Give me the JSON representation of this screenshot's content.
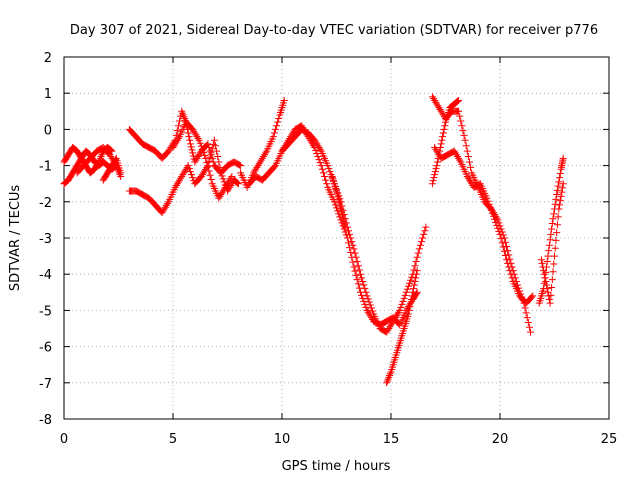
{
  "chart_data": {
    "type": "scatter",
    "title": "Day 307 of 2021, Sidereal Day-to-day VTEC variation (SDTVAR) for receiver p776",
    "xlabel": "GPS time / hours",
    "ylabel": "SDTVAR / TECUs",
    "xlim": [
      0,
      25
    ],
    "ylim": [
      -8,
      2
    ],
    "xticks": [
      0,
      5,
      10,
      15,
      20,
      25
    ],
    "yticks": [
      2,
      1,
      0,
      -1,
      -2,
      -3,
      -4,
      -5,
      -6,
      -7,
      -8
    ],
    "xtick_labels": [
      "0",
      "5",
      "10",
      "15",
      "20",
      "25"
    ],
    "ytick_labels": [
      "2",
      "1",
      "0",
      "-1",
      "-2",
      "-3",
      "-4",
      "-5",
      "-6",
      "-7",
      "-8"
    ],
    "grid": true,
    "marker": "plus",
    "color": "#ff0000",
    "series": [
      {
        "name": "s1",
        "x": [
          0.0,
          0.2,
          0.4,
          0.6,
          0.8,
          1.0,
          1.2,
          1.4,
          1.6,
          1.8,
          2.0,
          2.2,
          2.4
        ],
        "y": [
          -1.5,
          -1.4,
          -1.2,
          -1.0,
          -0.8,
          -0.6,
          -0.7,
          -0.9,
          -1.0,
          -0.9,
          -1.0,
          -1.1,
          -1.0
        ]
      },
      {
        "name": "s2",
        "x": [
          0.0,
          0.2,
          0.4,
          0.6,
          0.8,
          1.0,
          1.2,
          1.4,
          1.6,
          1.8,
          2.0,
          2.2
        ],
        "y": [
          -0.9,
          -0.7,
          -0.5,
          -0.6,
          -0.8,
          -1.0,
          -1.2,
          -1.1,
          -0.9,
          -0.6,
          -0.5,
          -0.6
        ]
      },
      {
        "name": "s3",
        "x": [
          0.6,
          0.9,
          1.2,
          1.5,
          1.8,
          2.1,
          2.4,
          2.6
        ],
        "y": [
          -1.2,
          -1.0,
          -0.8,
          -0.6,
          -0.5,
          -0.7,
          -1.0,
          -1.3
        ]
      },
      {
        "name": "s4",
        "x": [
          1.8,
          2.0,
          2.2,
          2.4,
          2.6
        ],
        "y": [
          -1.4,
          -1.2,
          -1.0,
          -0.8,
          -1.2
        ]
      },
      {
        "name": "s5",
        "x": [
          3.0,
          3.3,
          3.6,
          3.9,
          4.2,
          4.5,
          4.8,
          5.1,
          5.4,
          5.6,
          5.8,
          6.0,
          6.3,
          6.6,
          6.9,
          7.2,
          7.5,
          7.8,
          8.1
        ],
        "y": [
          0.0,
          -0.2,
          -0.4,
          -0.5,
          -0.6,
          -0.8,
          -0.6,
          -0.3,
          0.5,
          0.2,
          -0.4,
          -0.9,
          -0.6,
          -0.4,
          -1.0,
          -1.2,
          -1.0,
          -0.9,
          -1.0
        ]
      },
      {
        "name": "s6",
        "x": [
          3.0,
          3.3,
          3.6,
          3.9,
          4.2,
          4.5,
          4.8,
          5.1,
          5.4,
          5.7,
          6.0,
          6.3,
          6.6,
          6.9,
          7.2,
          7.5,
          7.8,
          8.0
        ],
        "y": [
          -1.7,
          -1.7,
          -1.8,
          -1.9,
          -2.1,
          -2.3,
          -2.0,
          -1.6,
          -1.3,
          -1.0,
          -1.5,
          -1.3,
          -1.0,
          -0.3,
          -1.2,
          -1.7,
          -1.4,
          -1.5
        ]
      },
      {
        "name": "s7",
        "x": [
          5.0,
          5.3,
          5.6,
          5.9,
          6.2,
          6.5,
          6.8,
          7.1,
          7.4,
          7.7
        ],
        "y": [
          -0.5,
          -0.2,
          0.2,
          0.0,
          -0.3,
          -0.8,
          -1.5,
          -1.9,
          -1.6,
          -1.3
        ]
      },
      {
        "name": "s8",
        "x": [
          8.1,
          8.4,
          8.7,
          9.0,
          9.3,
          9.6,
          9.9,
          10.1
        ],
        "y": [
          -1.2,
          -1.6,
          -1.2,
          -0.9,
          -0.6,
          -0.2,
          0.4,
          0.8
        ]
      },
      {
        "name": "s9",
        "x": [
          8.5,
          8.8,
          9.1,
          9.4,
          9.7,
          10.0,
          10.3,
          10.6,
          10.9,
          11.2,
          11.5,
          11.8,
          12.1,
          12.4,
          12.7,
          13.0,
          13.3,
          13.6,
          13.9,
          14.2,
          14.5,
          14.8,
          15.1,
          15.4,
          15.7,
          16.0,
          16.2
        ],
        "y": [
          -1.5,
          -1.3,
          -1.4,
          -1.2,
          -1.0,
          -0.6,
          -0.3,
          0.0,
          0.1,
          -0.2,
          -0.5,
          -1.0,
          -1.6,
          -2.0,
          -2.5,
          -3.0,
          -3.8,
          -4.5,
          -5.0,
          -5.3,
          -5.4,
          -5.3,
          -5.2,
          -5.4,
          -5.0,
          -4.7,
          -4.5
        ]
      },
      {
        "name": "s10",
        "x": [
          10.0,
          10.3,
          10.6,
          10.9,
          11.2,
          11.5,
          11.8,
          12.1,
          12.4,
          12.7,
          13.0,
          13.3,
          13.6,
          13.9,
          14.2,
          14.5,
          14.8,
          15.1,
          15.4,
          15.7,
          16.0,
          16.3,
          16.6
        ],
        "y": [
          -0.6,
          -0.4,
          -0.2,
          0.0,
          -0.1,
          -0.3,
          -0.6,
          -1.0,
          -1.5,
          -2.0,
          -2.7,
          -3.3,
          -4.0,
          -4.6,
          -5.1,
          -5.5,
          -5.6,
          -5.3,
          -5.0,
          -4.5,
          -4.0,
          -3.3,
          -2.7
        ]
      },
      {
        "name": "s11",
        "x": [
          12.3,
          12.5,
          12.7,
          12.9
        ],
        "y": [
          -1.3,
          -1.7,
          -2.2,
          -2.7
        ]
      },
      {
        "name": "s12",
        "x": [
          14.8,
          15.0,
          15.2,
          15.4,
          15.6,
          15.8,
          16.0,
          16.2
        ],
        "y": [
          -7.0,
          -6.7,
          -6.3,
          -5.9,
          -5.5,
          -5.1,
          -4.5,
          -3.9
        ]
      },
      {
        "name": "s13",
        "x": [
          16.9,
          17.2,
          17.5,
          17.8,
          18.1,
          18.4,
          18.7,
          19.0,
          19.3,
          19.6,
          19.9,
          20.2,
          20.5,
          20.8,
          21.1,
          21.4
        ],
        "y": [
          0.9,
          0.6,
          0.3,
          0.5,
          0.5,
          -0.3,
          -1.2,
          -1.6,
          -2.0,
          -2.2,
          -2.5,
          -3.0,
          -3.7,
          -4.3,
          -4.8,
          -5.6
        ]
      },
      {
        "name": "s14",
        "x": [
          17.0,
          17.3,
          17.6,
          17.9,
          18.2,
          18.5,
          18.8,
          19.1,
          19.4,
          19.7,
          20.0,
          20.3,
          20.6,
          20.9,
          21.2,
          21.5
        ],
        "y": [
          -0.5,
          -0.8,
          -0.7,
          -0.6,
          -0.9,
          -1.3,
          -1.6,
          -1.5,
          -1.9,
          -2.4,
          -2.9,
          -3.6,
          -4.2,
          -4.6,
          -4.8,
          -4.6
        ]
      },
      {
        "name": "s15",
        "x": [
          16.9,
          17.1,
          17.3,
          17.5,
          17.7,
          17.9,
          18.1
        ],
        "y": [
          -1.5,
          -1.0,
          -0.4,
          0.2,
          0.6,
          0.7,
          0.8
        ]
      },
      {
        "name": "s16",
        "x": [
          21.8,
          22.0,
          22.2,
          22.4,
          22.6,
          22.8,
          22.9
        ],
        "y": [
          -4.8,
          -4.4,
          -3.5,
          -2.6,
          -1.8,
          -1.1,
          -0.8
        ]
      },
      {
        "name": "s17",
        "x": [
          21.9,
          22.1,
          22.3,
          22.5,
          22.7,
          22.9
        ],
        "y": [
          -3.6,
          -4.2,
          -4.8,
          -3.5,
          -2.2,
          -1.5
        ]
      }
    ]
  }
}
